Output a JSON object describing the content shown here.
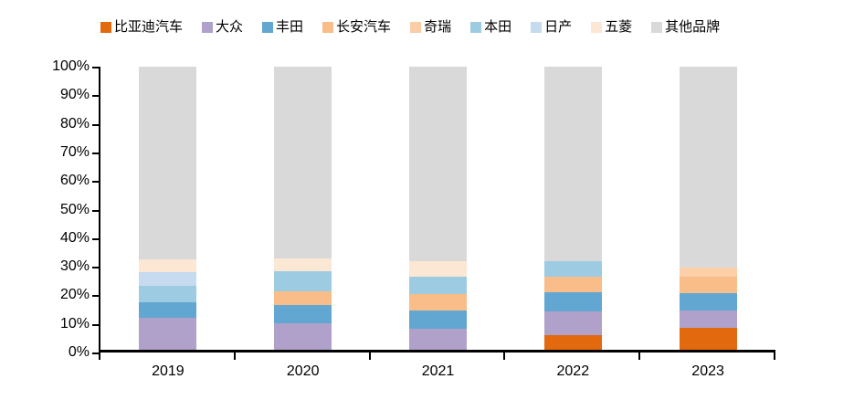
{
  "legend": {
    "items": [
      {
        "label": "比亚迪汽车",
        "color": "#E2690D"
      },
      {
        "label": "大众",
        "color": "#AFA1C9"
      },
      {
        "label": "丰田",
        "color": "#61A7D1"
      },
      {
        "label": "长安汽车",
        "color": "#F8BD88"
      },
      {
        "label": "奇瑞",
        "color": "#FACDA4"
      },
      {
        "label": "本田",
        "color": "#9CCBE2"
      },
      {
        "label": "日产",
        "color": "#C6DAF0"
      },
      {
        "label": "五菱",
        "color": "#FCE6D4"
      },
      {
        "label": "其他品牌",
        "color": "#D9D9D9"
      }
    ]
  },
  "chart_data": {
    "type": "bar",
    "stacked": true,
    "units": "percent",
    "title": "",
    "xlabel": "",
    "ylabel": "",
    "ylim": [
      0,
      100
    ],
    "grid": false,
    "legend_position": "top",
    "categories": [
      "2019",
      "2020",
      "2021",
      "2022",
      "2023"
    ],
    "yticks": [
      "100%",
      "90%",
      "80%",
      "70%",
      "60%",
      "50%",
      "40%",
      "30%",
      "20%",
      "10%",
      "0%"
    ],
    "series": [
      {
        "name": "比亚迪汽车",
        "color": "#E2690D",
        "values": [
          0,
          0,
          0,
          5.3,
          7.6
        ]
      },
      {
        "name": "大众",
        "color": "#AFA1C9",
        "values": [
          11.2,
          9.2,
          7.3,
          8.1,
          6.3
        ]
      },
      {
        "name": "丰田",
        "color": "#61A7D1",
        "values": [
          5.7,
          6.6,
          6.6,
          6.8,
          6.0
        ]
      },
      {
        "name": "长安汽车",
        "color": "#F8BD88",
        "values": [
          0,
          4.8,
          5.7,
          5.7,
          5.8
        ]
      },
      {
        "name": "奇瑞",
        "color": "#FBD0A9",
        "values": [
          0,
          0,
          0,
          0,
          3.5
        ]
      },
      {
        "name": "本田",
        "color": "#9CCBE2",
        "values": [
          5.6,
          7.0,
          6.1,
          5.3,
          0
        ]
      },
      {
        "name": "日产",
        "color": "#C6DAF0",
        "values": [
          5.0,
          0,
          0,
          0,
          0
        ]
      },
      {
        "name": "五菱",
        "color": "#FCE6D4",
        "values": [
          4.5,
          4.6,
          5.7,
          0,
          0
        ]
      },
      {
        "name": "其他品牌",
        "color": "#D9D9D9",
        "values": [
          68.0,
          67.8,
          68.6,
          68.8,
          70.8
        ]
      }
    ]
  }
}
